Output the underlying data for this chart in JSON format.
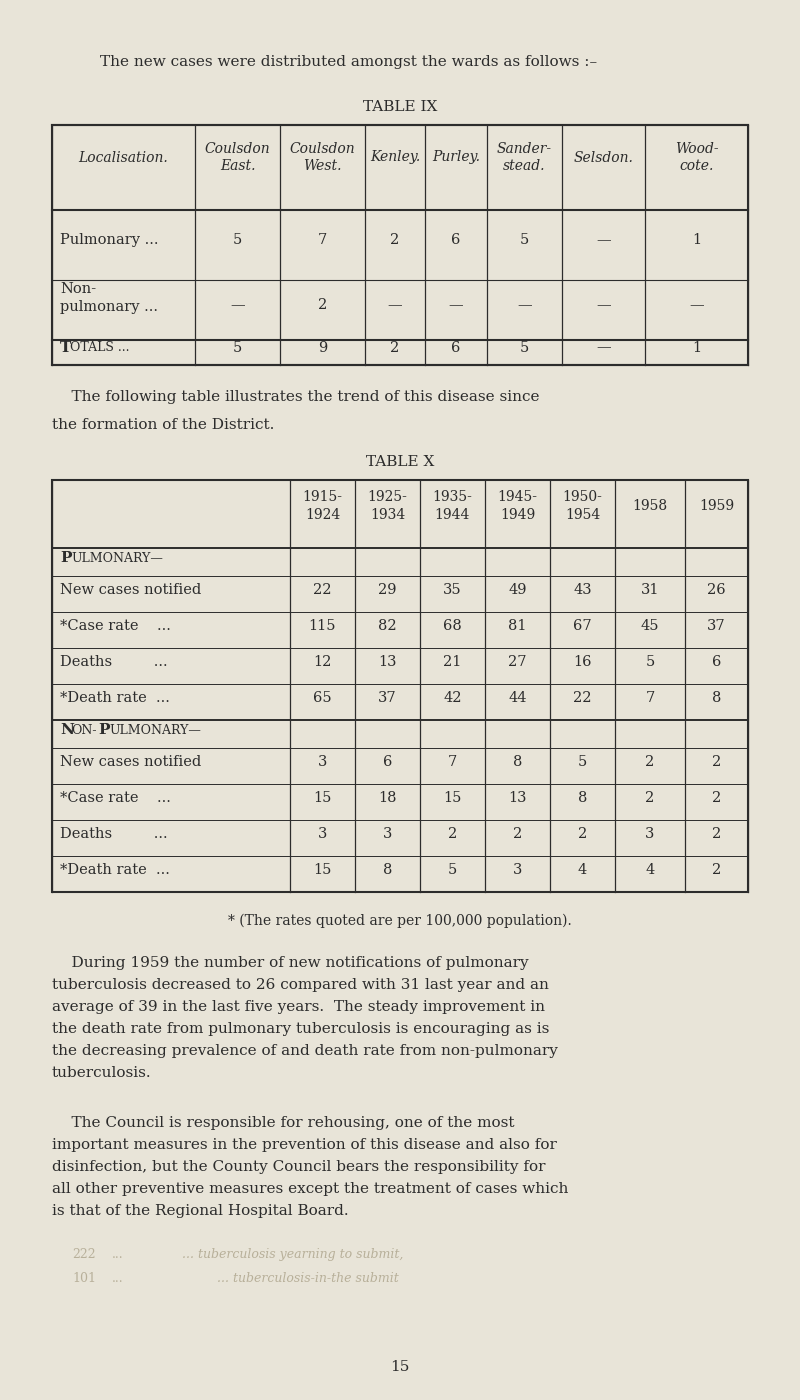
{
  "bg_color": "#e8e4d8",
  "text_color": "#2c2c2c",
  "page_number": "15",
  "intro_text": "The new cases were distributed amongst the wards as follows :–",
  "table9_title": "TABLE IX",
  "table9_headers": [
    "Localisation.",
    "Coulsdon\nEast.",
    "Coulsdon\nWest.",
    "Kenley.",
    "Purley.",
    "Sander-\nstead.",
    "Selsdon.",
    "Wood-\ncote."
  ],
  "table9_rows": [
    [
      "Pulmonary ...",
      "5",
      "7",
      "2",
      "6",
      "5",
      "—",
      "1"
    ],
    [
      "Non-\npulmonary ...",
      "—",
      "2",
      "—",
      "—",
      "—",
      "—",
      "—"
    ],
    [
      "Totals ...",
      "5",
      "9",
      "2",
      "6",
      "5",
      "—",
      "1"
    ]
  ],
  "mid_text_line1": "    The following table illustrates the trend of this disease since",
  "mid_text_line2": "the formation of the District.",
  "table10_title": "TABLE X",
  "table10_headers": [
    "",
    "1915-\n1924",
    "1925-\n1934",
    "1935-\n1944",
    "1945-\n1949",
    "1950-\n1954",
    "1958",
    "1959"
  ],
  "table10_section1_label": "Pulmonary—",
  "table10_section2_label": "Non-Pulmonary—",
  "table10_rows": [
    [
      "PULMONARY—",
      "",
      "",
      "",
      "",
      "",
      "",
      ""
    ],
    [
      "New cases notified",
      "22",
      "29",
      "35",
      "49",
      "43",
      "31",
      "26"
    ],
    [
      "*Case rate    ...",
      "115",
      "82",
      "68",
      "81",
      "67",
      "45",
      "37"
    ],
    [
      "Deaths         ...",
      "12",
      "13",
      "21",
      "27",
      "16",
      "5",
      "6"
    ],
    [
      "*Death rate  ...",
      "65",
      "37",
      "42",
      "44",
      "22",
      "7",
      "8"
    ],
    [
      "NON-PULMONARY—",
      "",
      "",
      "",
      "",
      "",
      "",
      ""
    ],
    [
      "New cases notified",
      "3",
      "6",
      "7",
      "8",
      "5",
      "2",
      "2"
    ],
    [
      "*Case rate    ...",
      "15",
      "18",
      "15",
      "13",
      "8",
      "2",
      "2"
    ],
    [
      "Deaths         ...",
      "3",
      "3",
      "2",
      "2",
      "2",
      "3",
      "2"
    ],
    [
      "*Death rate  ...",
      "15",
      "8",
      "5",
      "3",
      "4",
      "4",
      "2"
    ]
  ],
  "footnote": "* (The rates quoted are per 100,000 population).",
  "p1_lines": [
    "    During 1959 the number of new notifications of pulmonary",
    "tuberculosis decreased to 26 compared with 31 last year and an",
    "average of 39 in the last five years.  The steady improvement in",
    "the death rate from pulmonary tuberculosis is encouraging as is",
    "the decreasing prevalence of and death rate from non-pulmonary",
    "tuberculosis."
  ],
  "p2_lines": [
    "    The Council is responsible for rehousing, one of the most",
    "important measures in the prevention of this disease and also for",
    "disinfection, but the County Council bears the responsibility for",
    "all other preventive measures except the treatment of cases which",
    "is that of the Regional Hospital Board."
  ],
  "ghost1_num": "222",
  "ghost1_dots": "   ...",
  "ghost1_text": "    ... tuberculosis yearning to submit,",
  "ghost2_num": "101",
  "ghost2_dots": "   ...",
  "ghost2_text": "         ... tuberculosis-in-the submit"
}
